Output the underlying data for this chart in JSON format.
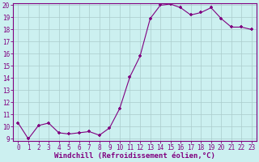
{
  "x": [
    0,
    1,
    2,
    3,
    4,
    5,
    6,
    7,
    8,
    9,
    10,
    11,
    12,
    13,
    14,
    15,
    16,
    17,
    18,
    19,
    20,
    21,
    22,
    23
  ],
  "y": [
    10.3,
    9.0,
    10.1,
    10.3,
    9.5,
    9.4,
    9.5,
    9.6,
    9.3,
    9.9,
    11.5,
    14.1,
    15.8,
    18.9,
    20.0,
    20.1,
    19.8,
    19.2,
    19.4,
    19.8,
    18.9,
    18.2,
    18.2,
    18.0
  ],
  "ylim": [
    9,
    20
  ],
  "yticks": [
    9,
    10,
    11,
    12,
    13,
    14,
    15,
    16,
    17,
    18,
    19,
    20
  ],
  "xticks": [
    0,
    1,
    2,
    3,
    4,
    5,
    6,
    7,
    8,
    9,
    10,
    11,
    12,
    13,
    14,
    15,
    16,
    17,
    18,
    19,
    20,
    21,
    22,
    23
  ],
  "xlabel": "Windchill (Refroidissement éolien,°C)",
  "line_color": "#800080",
  "marker": "+",
  "bg_color": "#ccf0f0",
  "grid_color": "#aacccc",
  "tick_fontsize": 5.5,
  "label_fontsize": 6.5,
  "ytick_fontsize": 5.5
}
